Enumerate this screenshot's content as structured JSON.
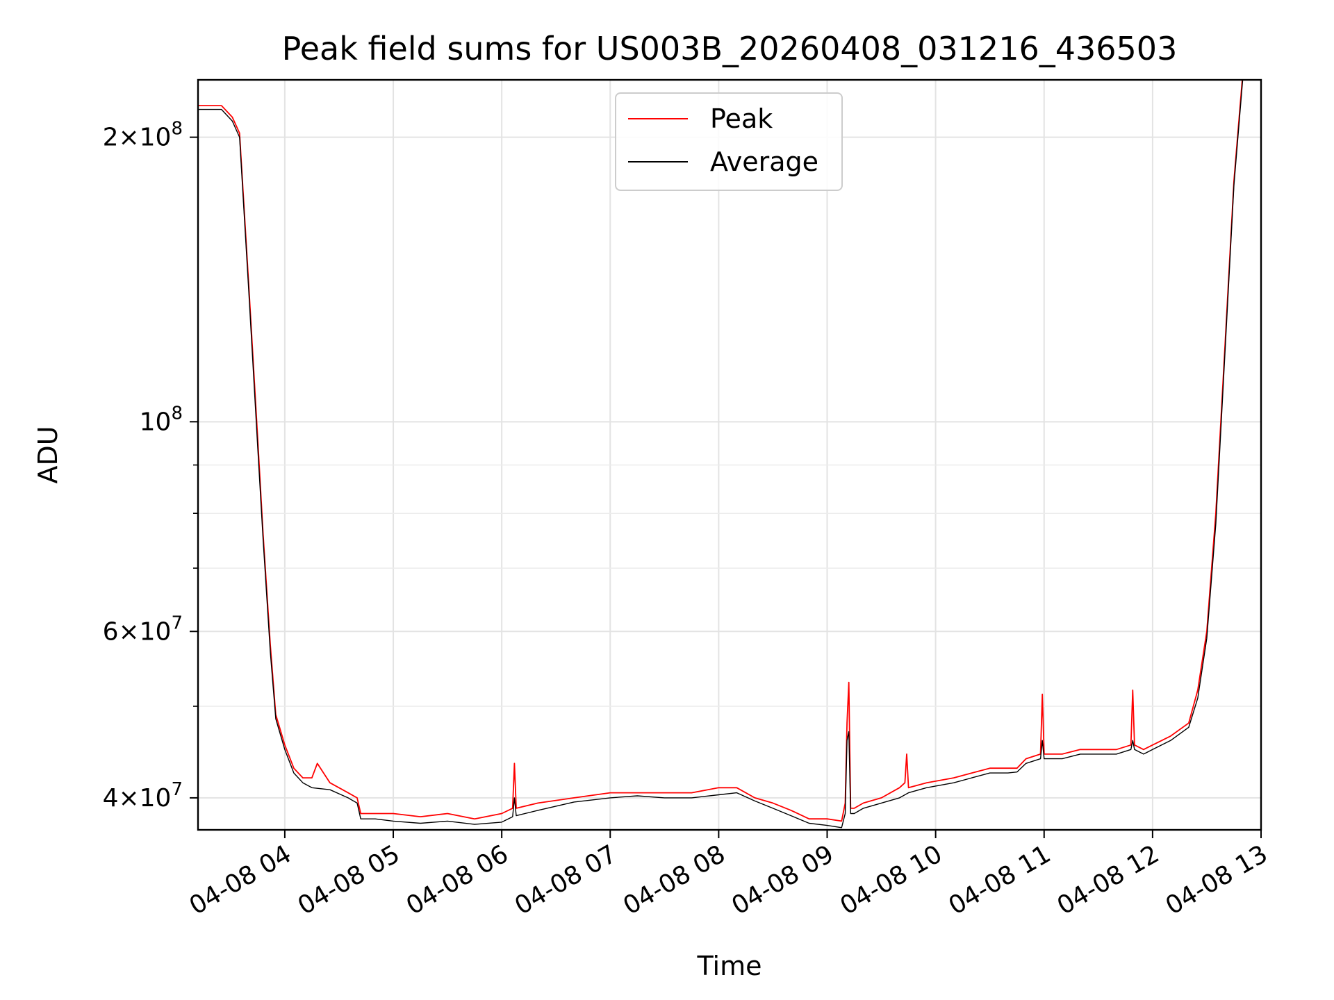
{
  "chart_data": {
    "type": "line",
    "title": "Peak field sums for US003B_20260408_031216_436503",
    "xlabel": "Time",
    "ylabel": "ADU",
    "x_scale": "time",
    "y_scale": "log",
    "xlim": [
      "2026-04-08 03:12",
      "2026-04-08 13:00"
    ],
    "ylim": [
      37000000,
      230000000
    ],
    "grid": true,
    "legend_position": "top-center",
    "x_ticks": [
      {
        "value": "2026-04-08 04:00",
        "label": "04-08 04"
      },
      {
        "value": "2026-04-08 05:00",
        "label": "04-08 05"
      },
      {
        "value": "2026-04-08 06:00",
        "label": "04-08 06"
      },
      {
        "value": "2026-04-08 07:00",
        "label": "04-08 07"
      },
      {
        "value": "2026-04-08 08:00",
        "label": "04-08 08"
      },
      {
        "value": "2026-04-08 09:00",
        "label": "04-08 09"
      },
      {
        "value": "2026-04-08 10:00",
        "label": "04-08 10"
      },
      {
        "value": "2026-04-08 11:00",
        "label": "04-08 11"
      },
      {
        "value": "2026-04-08 12:00",
        "label": "04-08 12"
      },
      {
        "value": "2026-04-08 13:00",
        "label": "04-08 13"
      }
    ],
    "y_ticks_major": [
      {
        "value": 40000000,
        "mantissa": "4",
        "exponent": "7"
      },
      {
        "value": 60000000,
        "mantissa": "6",
        "exponent": "7"
      },
      {
        "value": 100000000,
        "mantissa": "",
        "exponent": "8"
      },
      {
        "value": 200000000,
        "mantissa": "2",
        "exponent": "8"
      }
    ],
    "y_ticks_minor": [
      50000000,
      70000000,
      80000000,
      90000000
    ],
    "series": [
      {
        "name": "Peak",
        "color": "#ff0000",
        "x": [
          "2026-04-08 03:12",
          "2026-04-08 03:20",
          "2026-04-08 03:25",
          "2026-04-08 03:31",
          "2026-04-08 03:35",
          "2026-04-08 03:40",
          "2026-04-08 03:45",
          "2026-04-08 03:48",
          "2026-04-08 03:52",
          "2026-04-08 03:55",
          "2026-04-08 04:00",
          "2026-04-08 04:05",
          "2026-04-08 04:10",
          "2026-04-08 04:15",
          "2026-04-08 04:18",
          "2026-04-08 04:25",
          "2026-04-08 04:35",
          "2026-04-08 04:40",
          "2026-04-08 04:42",
          "2026-04-08 04:50",
          "2026-04-08 05:00",
          "2026-04-08 05:15",
          "2026-04-08 05:30",
          "2026-04-08 05:45",
          "2026-04-08 06:00",
          "2026-04-08 06:06",
          "2026-04-08 06:07",
          "2026-04-08 06:08",
          "2026-04-08 06:20",
          "2026-04-08 06:40",
          "2026-04-08 07:00",
          "2026-04-08 07:15",
          "2026-04-08 07:30",
          "2026-04-08 07:45",
          "2026-04-08 08:00",
          "2026-04-08 08:10",
          "2026-04-08 08:20",
          "2026-04-08 08:30",
          "2026-04-08 08:40",
          "2026-04-08 08:50",
          "2026-04-08 09:00",
          "2026-04-08 09:08",
          "2026-04-08 09:10",
          "2026-04-08 09:11",
          "2026-04-08 09:12",
          "2026-04-08 09:13",
          "2026-04-08 09:15",
          "2026-04-08 09:20",
          "2026-04-08 09:30",
          "2026-04-08 09:40",
          "2026-04-08 09:43",
          "2026-04-08 09:44",
          "2026-04-08 09:45",
          "2026-04-08 09:55",
          "2026-04-08 10:10",
          "2026-04-08 10:20",
          "2026-04-08 10:30",
          "2026-04-08 10:40",
          "2026-04-08 10:45",
          "2026-04-08 10:50",
          "2026-04-08 10:58",
          "2026-04-08 10:59",
          "2026-04-08 11:00",
          "2026-04-08 11:10",
          "2026-04-08 11:20",
          "2026-04-08 11:30",
          "2026-04-08 11:40",
          "2026-04-08 11:48",
          "2026-04-08 11:49",
          "2026-04-08 11:50",
          "2026-04-08 11:55",
          "2026-04-08 12:00",
          "2026-04-08 12:10",
          "2026-04-08 12:20",
          "2026-04-08 12:25",
          "2026-04-08 12:30",
          "2026-04-08 12:35",
          "2026-04-08 12:40",
          "2026-04-08 12:45",
          "2026-04-08 12:50"
        ],
        "y": [
          216000000,
          216000000,
          216000000,
          210000000,
          202000000,
          140000000,
          96000000,
          76000000,
          58000000,
          49000000,
          45500000,
          43000000,
          42000000,
          42000000,
          43500000,
          41500000,
          40500000,
          40000000,
          38500000,
          38500000,
          38500000,
          38200000,
          38500000,
          38000000,
          38500000,
          39000000,
          43500000,
          39000000,
          39500000,
          40000000,
          40500000,
          40500000,
          40500000,
          40500000,
          41000000,
          41000000,
          40000000,
          39500000,
          38800000,
          38000000,
          38000000,
          37800000,
          39500000,
          48000000,
          53000000,
          39000000,
          39000000,
          39500000,
          40000000,
          41000000,
          41500000,
          44500000,
          41000000,
          41500000,
          42000000,
          42500000,
          43000000,
          43000000,
          43000000,
          44000000,
          44500000,
          51500000,
          44500000,
          44500000,
          45000000,
          45000000,
          45000000,
          45500000,
          52000000,
          45500000,
          45000000,
          45500000,
          46500000,
          48000000,
          52000000,
          60000000,
          80000000,
          120000000,
          180000000,
          235000000
        ]
      },
      {
        "name": "Average",
        "color": "#000000",
        "x": [
          "2026-04-08 03:12",
          "2026-04-08 03:20",
          "2026-04-08 03:25",
          "2026-04-08 03:31",
          "2026-04-08 03:35",
          "2026-04-08 03:40",
          "2026-04-08 03:45",
          "2026-04-08 03:48",
          "2026-04-08 03:52",
          "2026-04-08 03:55",
          "2026-04-08 04:00",
          "2026-04-08 04:05",
          "2026-04-08 04:10",
          "2026-04-08 04:15",
          "2026-04-08 04:25",
          "2026-04-08 04:35",
          "2026-04-08 04:40",
          "2026-04-08 04:42",
          "2026-04-08 04:50",
          "2026-04-08 05:00",
          "2026-04-08 05:15",
          "2026-04-08 05:30",
          "2026-04-08 05:45",
          "2026-04-08 06:00",
          "2026-04-08 06:06",
          "2026-04-08 06:07",
          "2026-04-08 06:08",
          "2026-04-08 06:20",
          "2026-04-08 06:40",
          "2026-04-08 07:00",
          "2026-04-08 07:15",
          "2026-04-08 07:30",
          "2026-04-08 07:45",
          "2026-04-08 08:00",
          "2026-04-08 08:10",
          "2026-04-08 08:20",
          "2026-04-08 08:30",
          "2026-04-08 08:40",
          "2026-04-08 08:50",
          "2026-04-08 09:00",
          "2026-04-08 09:08",
          "2026-04-08 09:10",
          "2026-04-08 09:11",
          "2026-04-08 09:12",
          "2026-04-08 09:13",
          "2026-04-08 09:15",
          "2026-04-08 09:20",
          "2026-04-08 09:30",
          "2026-04-08 09:40",
          "2026-04-08 09:45",
          "2026-04-08 09:55",
          "2026-04-08 10:10",
          "2026-04-08 10:20",
          "2026-04-08 10:30",
          "2026-04-08 10:40",
          "2026-04-08 10:45",
          "2026-04-08 10:50",
          "2026-04-08 10:58",
          "2026-04-08 10:59",
          "2026-04-08 11:00",
          "2026-04-08 11:10",
          "2026-04-08 11:20",
          "2026-04-08 11:30",
          "2026-04-08 11:40",
          "2026-04-08 11:48",
          "2026-04-08 11:49",
          "2026-04-08 11:50",
          "2026-04-08 11:55",
          "2026-04-08 12:00",
          "2026-04-08 12:10",
          "2026-04-08 12:20",
          "2026-04-08 12:25",
          "2026-04-08 12:30",
          "2026-04-08 12:35",
          "2026-04-08 12:40",
          "2026-04-08 12:45",
          "2026-04-08 12:50"
        ],
        "y": [
          214000000,
          214000000,
          214000000,
          208000000,
          200000000,
          138000000,
          94000000,
          75000000,
          57000000,
          48500000,
          45000000,
          42500000,
          41500000,
          41000000,
          40800000,
          40000000,
          39500000,
          38000000,
          38000000,
          37800000,
          37600000,
          37800000,
          37500000,
          37700000,
          38200000,
          40000000,
          38300000,
          38800000,
          39600000,
          40000000,
          40200000,
          40000000,
          40000000,
          40300000,
          40500000,
          39700000,
          39000000,
          38300000,
          37600000,
          37400000,
          37200000,
          38500000,
          46000000,
          47000000,
          38500000,
          38500000,
          39000000,
          39500000,
          40000000,
          40500000,
          41000000,
          41500000,
          42000000,
          42500000,
          42500000,
          42600000,
          43500000,
          44000000,
          46000000,
          44000000,
          44000000,
          44500000,
          44500000,
          44500000,
          45000000,
          46000000,
          45000000,
          44500000,
          45000000,
          46000000,
          47500000,
          51000000,
          59000000,
          78000000,
          118000000,
          178000000,
          232000000
        ]
      }
    ]
  }
}
